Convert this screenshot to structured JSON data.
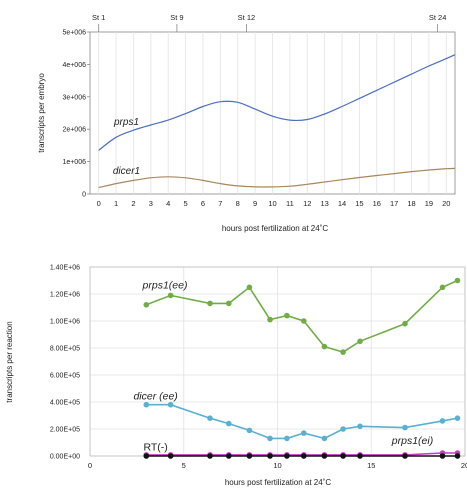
{
  "chart_data": [
    {
      "type": "line",
      "xlabel": "hours post fertilization at 24˚C",
      "ylabel": "transcripts per embryo",
      "xlim": [
        -0.5,
        20.5
      ],
      "ylim": [
        0,
        5000000
      ],
      "x_ticks": [
        0,
        1,
        2,
        3,
        4,
        5,
        6,
        7,
        8,
        9,
        10,
        11,
        12,
        13,
        14,
        15,
        16,
        17,
        18,
        19,
        20
      ],
      "y_ticks": [
        0,
        1000000,
        2000000,
        3000000,
        4000000,
        5000000
      ],
      "y_tick_labels": [
        "0",
        "1e+006",
        "2e+006",
        "3e+006",
        "4e+006",
        "5e+006"
      ],
      "grid": "vertical",
      "stage_markers": [
        {
          "label": "St 1",
          "x": 0
        },
        {
          "label": "St 9",
          "x": 4.5
        },
        {
          "label": "St 12",
          "x": 8.5
        },
        {
          "label": "St 24",
          "x": 19.5
        }
      ],
      "series": [
        {
          "name": "prps1",
          "color": "#4a6fc1",
          "x": [
            0,
            1,
            2,
            3,
            4,
            5,
            6,
            7,
            8,
            9,
            10,
            11,
            12,
            13,
            14,
            15,
            16,
            17,
            18,
            19,
            20,
            20.5
          ],
          "y": [
            1350000,
            1750000,
            1970000,
            2130000,
            2280000,
            2480000,
            2700000,
            2850000,
            2830000,
            2620000,
            2400000,
            2280000,
            2300000,
            2470000,
            2700000,
            2950000,
            3200000,
            3450000,
            3700000,
            3950000,
            4180000,
            4300000
          ]
        },
        {
          "name": "dicer1",
          "color": "#a8875a",
          "x": [
            0,
            1,
            2,
            3,
            4,
            5,
            6,
            7,
            8,
            9,
            10,
            11,
            12,
            13,
            14,
            15,
            16,
            17,
            18,
            19,
            20,
            20.5
          ],
          "y": [
            200000,
            320000,
            420000,
            500000,
            530000,
            500000,
            420000,
            320000,
            250000,
            220000,
            220000,
            240000,
            300000,
            370000,
            440000,
            510000,
            570000,
            630000,
            690000,
            740000,
            780000,
            790000
          ]
        }
      ]
    },
    {
      "type": "scatter",
      "xlabel": "hours post fertilization at 24˚C",
      "ylabel": "transcripts per reaction",
      "xlim": [
        0,
        20
      ],
      "ylim": [
        0,
        1400000
      ],
      "x_ticks": [
        0,
        5,
        10,
        15,
        20
      ],
      "y_ticks": [
        0,
        200000,
        400000,
        600000,
        800000,
        1000000,
        1200000,
        1400000
      ],
      "y_tick_labels": [
        "0.00E+00",
        "2.00E+05",
        "4.00E+05",
        "6.00E+05",
        "8.00E+05",
        "1.00E+06",
        "1.20E+06",
        "1.40E+06"
      ],
      "grid": "both",
      "series": [
        {
          "name": "prps1(ee)",
          "color": "#70ad47",
          "x": [
            3,
            4.3,
            6.4,
            7.4,
            8.5,
            9.6,
            10.5,
            11.4,
            12.5,
            13.5,
            14.4,
            16.8,
            18.8,
            19.6
          ],
          "y": [
            1120000,
            1190000,
            1130000,
            1130000,
            1250000,
            1010000,
            1040000,
            1000000,
            810000,
            770000,
            850000,
            980000,
            1250000,
            1300000
          ]
        },
        {
          "name": "dicer (ee)",
          "color": "#5ab0d2",
          "x": [
            3,
            4.3,
            6.4,
            7.4,
            8.5,
            9.6,
            10.5,
            11.4,
            12.5,
            13.5,
            14.4,
            16.8,
            18.8,
            19.6
          ],
          "y": [
            380000,
            380000,
            280000,
            240000,
            190000,
            130000,
            130000,
            170000,
            130000,
            200000,
            220000,
            210000,
            260000,
            280000
          ]
        },
        {
          "name": "prps1(ei)",
          "color": "#c43cc4",
          "x": [
            3,
            4.3,
            6.4,
            7.4,
            8.5,
            9.6,
            10.5,
            11.4,
            12.5,
            13.5,
            14.4,
            16.8,
            18.8,
            19.6
          ],
          "y": [
            8000,
            8000,
            8000,
            8000,
            8000,
            8000,
            8000,
            8000,
            8000,
            8000,
            8000,
            8000,
            22000,
            22000
          ]
        },
        {
          "name": "RT(-)",
          "color": "#111111",
          "x": [
            3,
            4.3,
            6.4,
            7.4,
            8.5,
            9.6,
            10.5,
            11.4,
            12.5,
            13.5,
            14.4,
            16.8,
            18.8,
            19.6
          ],
          "y": [
            0,
            0,
            0,
            0,
            0,
            0,
            0,
            0,
            0,
            0,
            0,
            0,
            0,
            0
          ]
        }
      ]
    }
  ]
}
